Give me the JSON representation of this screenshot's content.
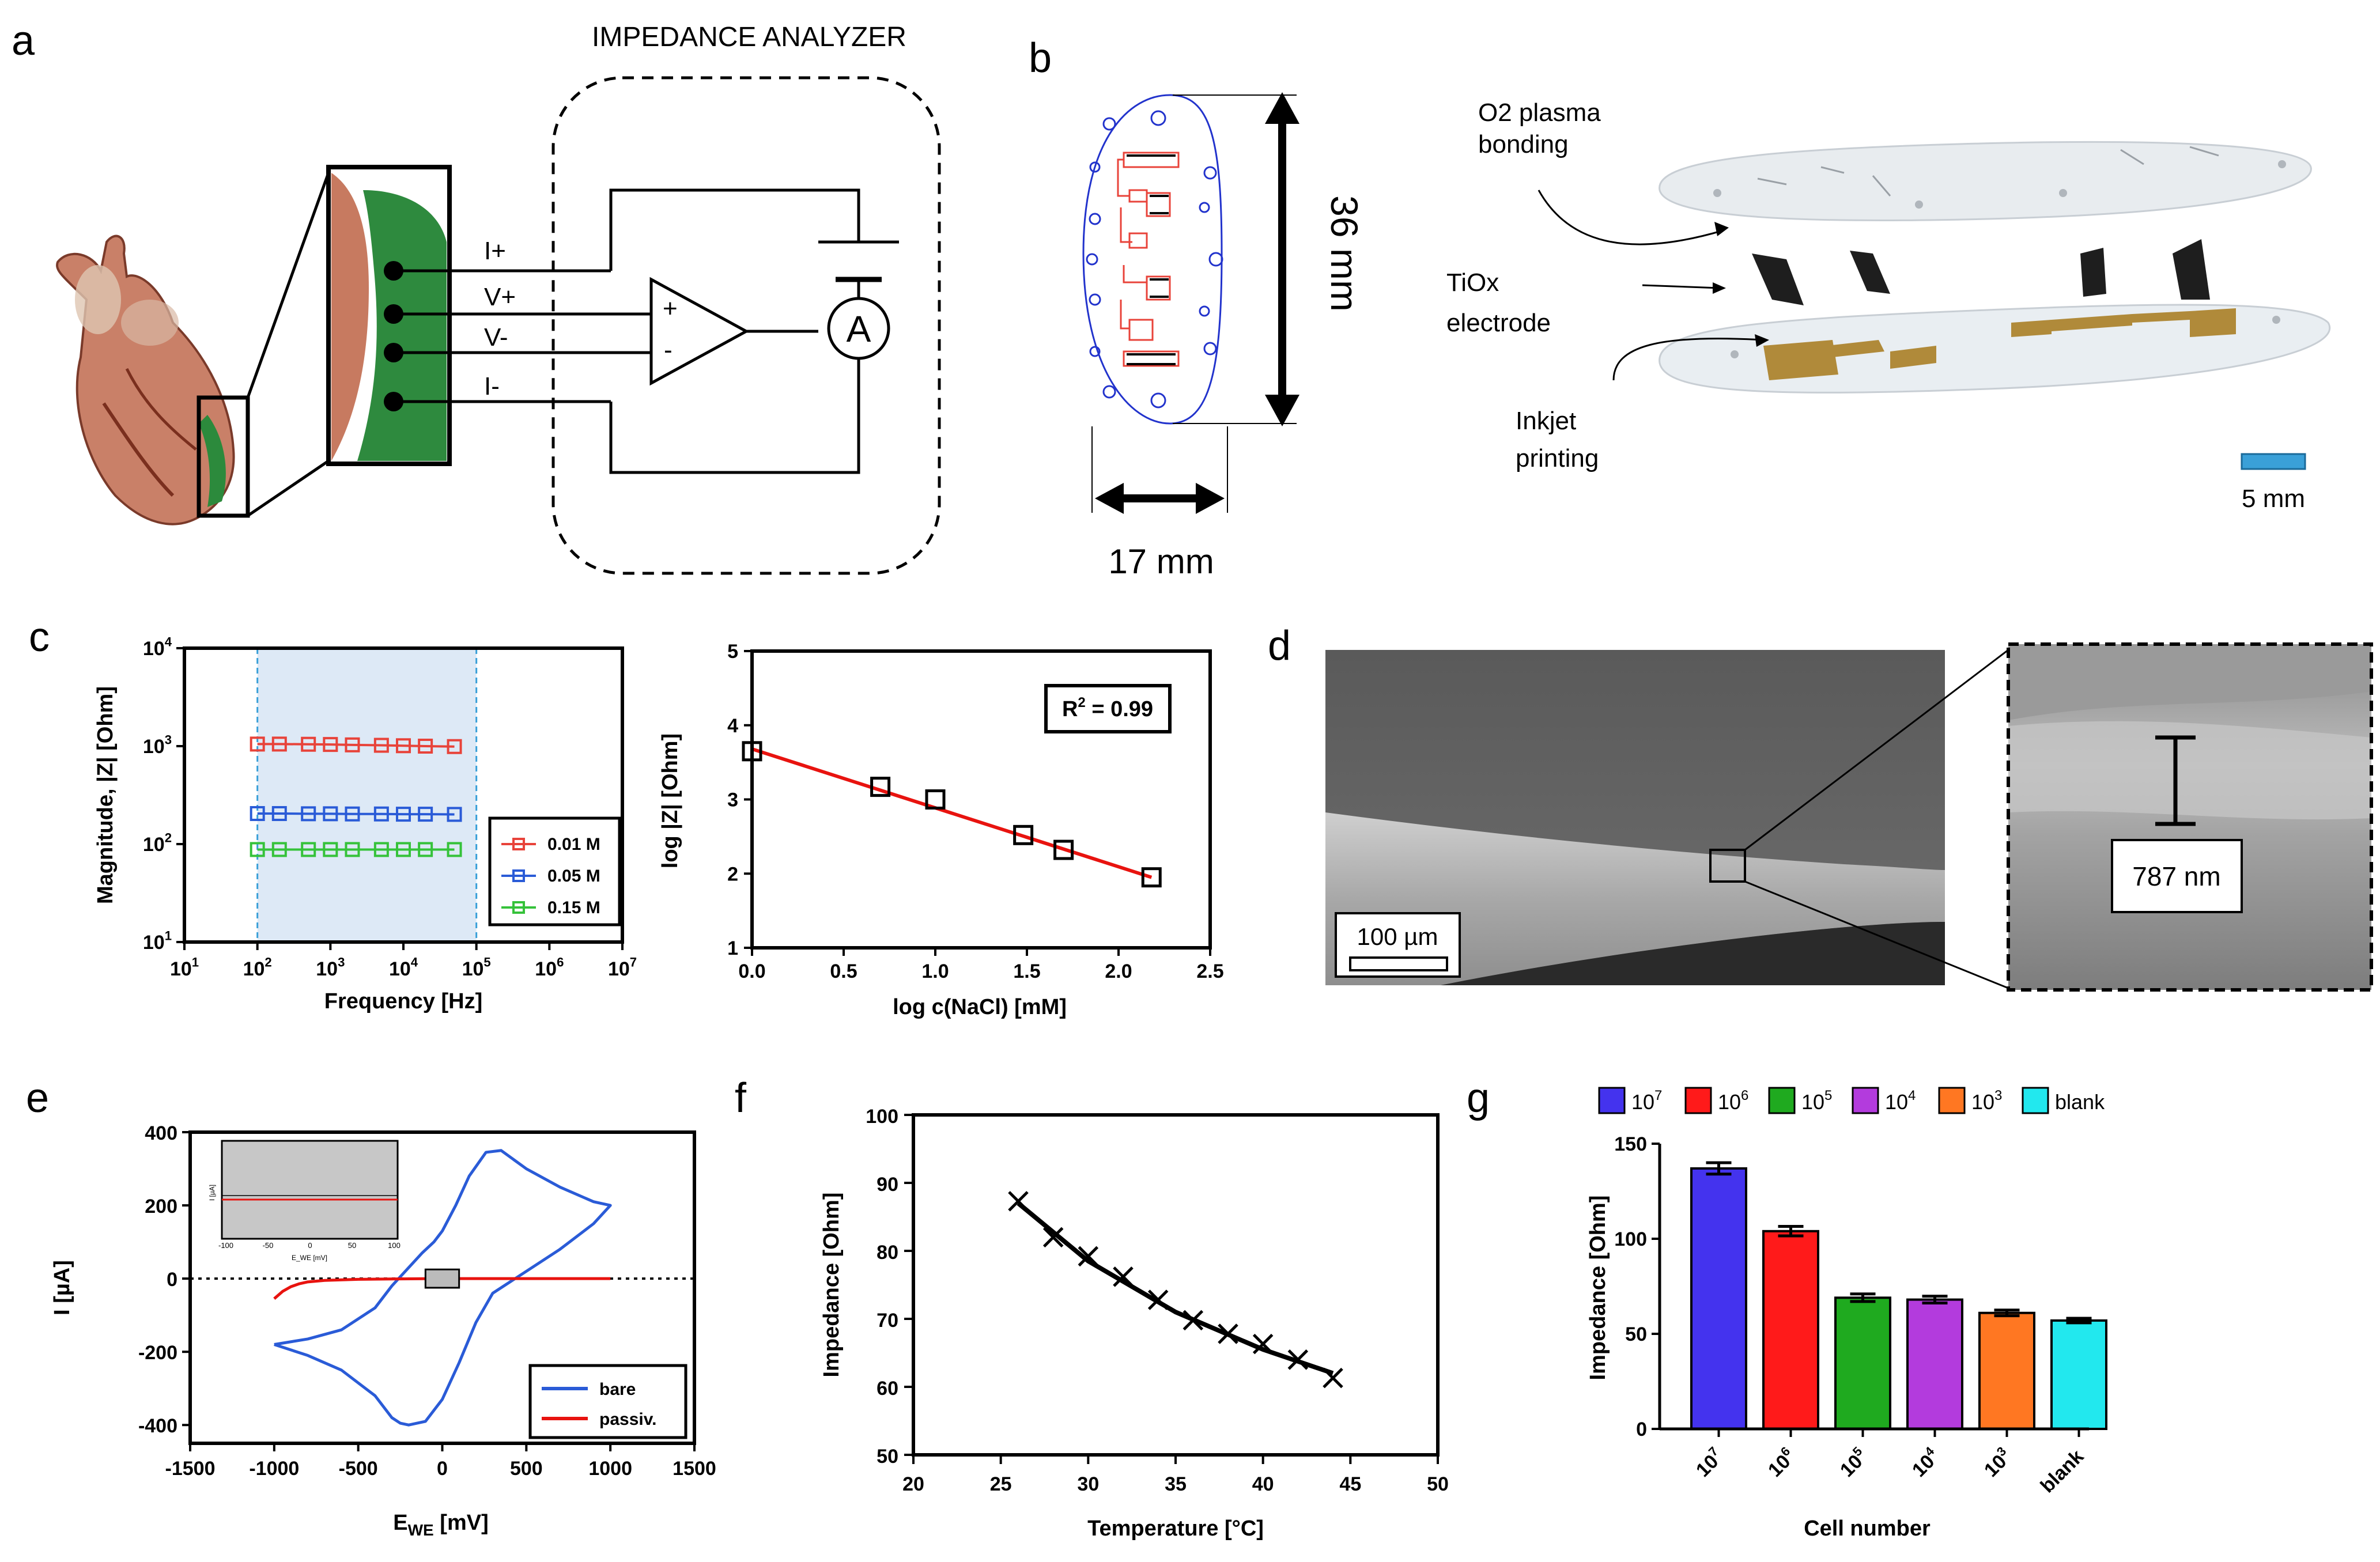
{
  "panel_labels": {
    "a": "a",
    "b": "b",
    "c": "c",
    "d": "d",
    "e": "e",
    "f": "f",
    "g": "g"
  },
  "panel_a": {
    "analyzer_title": "IMPEDANCE ANALYZER",
    "leads": [
      "I+",
      "V+",
      "V-",
      "I-"
    ],
    "opamp_plus": "+",
    "opamp_minus": "-",
    "ammeter": "A"
  },
  "panel_b": {
    "height_label": "36 mm",
    "width_label": "17 mm",
    "o2_label_line1": "O2 plasma",
    "o2_label_line2": "bonding",
    "tiox_label_line1": "TiOx",
    "tiox_label_line2": "electrode",
    "inkjet_label_line1": "Inkjet",
    "inkjet_label_line2": "printing",
    "scale_bar_label": "5 mm",
    "colors": {
      "trace": "#e8433a",
      "outline": "#2233cc",
      "gold": "#b08a3a",
      "scale": "#3aa0d8"
    }
  },
  "panel_d": {
    "scale_bar_label": "100 µm",
    "thickness_label": "787 nm"
  },
  "chart_data": [
    {
      "id": "c-left",
      "type": "line",
      "xscale": "log",
      "yscale": "log",
      "xlabel": "Frequency [Hz]",
      "ylabel": "Magnitude, |Z| [Ohm]",
      "x_ticks": [
        "10",
        "10",
        "10",
        "10",
        "10",
        "10",
        "10"
      ],
      "x_tick_exps": [
        "1",
        "2",
        "3",
        "4",
        "5",
        "6",
        "7"
      ],
      "y_ticks": [
        "10",
        "10",
        "10",
        "10"
      ],
      "y_tick_exps": [
        "1",
        "2",
        "3",
        "4"
      ],
      "xlim": [
        10,
        10000000
      ],
      "ylim": [
        10,
        10000
      ],
      "shaded_range": [
        100,
        100000
      ],
      "x": [
        100,
        200,
        500,
        1000,
        2000,
        5000,
        10000,
        20000,
        50000
      ],
      "series": [
        {
          "name": "0.01 M",
          "color": "#e8433a",
          "values": [
            1050,
            1050,
            1045,
            1040,
            1030,
            1020,
            1010,
            1000,
            990
          ]
        },
        {
          "name": "0.05 M",
          "color": "#2a5bd7",
          "values": [
            205,
            205,
            204,
            204,
            203,
            203,
            202,
            202,
            201
          ]
        },
        {
          "name": "0.15 M",
          "color": "#35c23a",
          "values": [
            88,
            88,
            88,
            88,
            88,
            88,
            88,
            88,
            88
          ]
        }
      ],
      "legend": [
        "0.01 M",
        "0.05 M",
        "0.15 M"
      ],
      "legend_position": "bottom-right"
    },
    {
      "id": "c-right",
      "type": "scatter",
      "xlabel": "log c(NaCl) [mM]",
      "ylabel": "log |Z| [Ohm]",
      "xlim": [
        0,
        2.5
      ],
      "ylim": [
        1,
        5
      ],
      "x_ticks": [
        "0.0",
        "0.5",
        "1.0",
        "1.5",
        "2.0",
        "2.5"
      ],
      "y_ticks": [
        "1",
        "2",
        "3",
        "4",
        "5"
      ],
      "x": [
        0.0,
        0.7,
        1.0,
        1.48,
        1.7,
        2.18
      ],
      "values": [
        3.65,
        3.17,
        3.0,
        2.52,
        2.32,
        1.95
      ],
      "fit": {
        "x0": 0.0,
        "y0": 3.68,
        "x1": 2.18,
        "y1": 1.95,
        "color": "#e8130f"
      },
      "r2_prefix": "R",
      "r2_sup": "2",
      "r2_suffix": " = 0.99"
    },
    {
      "id": "e",
      "type": "line",
      "xlabel_main": "E",
      "xlabel_sub": "WE",
      "xlabel_unit": " [mV]",
      "ylabel": "I [µA]",
      "xlim": [
        -1500,
        1500
      ],
      "ylim": [
        -450,
        400
      ],
      "x_ticks": [
        "-1500",
        "-1000",
        "-500",
        "0",
        "500",
        "1000",
        "1500"
      ],
      "y_ticks": [
        "-400",
        "-200",
        "0",
        "200",
        "400"
      ],
      "series": [
        {
          "name": "bare",
          "color": "#2a5bd7",
          "x": [
            -1000,
            -800,
            -600,
            -400,
            -300,
            -200,
            -120,
            -50,
            0,
            80,
            160,
            260,
            350,
            500,
            700,
            900,
            1000,
            900,
            700,
            500,
            300,
            200,
            100,
            0,
            -100,
            -200,
            -250,
            -300,
            -400,
            -600,
            -800,
            -1000
          ],
          "y": [
            -180,
            -165,
            -140,
            -80,
            -20,
            30,
            70,
            100,
            130,
            200,
            280,
            345,
            350,
            300,
            250,
            210,
            200,
            150,
            80,
            20,
            -40,
            -120,
            -230,
            -330,
            -390,
            -400,
            -395,
            -380,
            -320,
            -250,
            -210,
            -180
          ]
        },
        {
          "name": "passiv.",
          "color": "#e8130f",
          "x": [
            -1000,
            -950,
            -900,
            -850,
            -800,
            -700,
            -500,
            -300,
            0,
            500,
            1000
          ],
          "y": [
            -55,
            -35,
            -22,
            -14,
            -9,
            -5,
            -2,
            -1,
            0,
            0,
            0
          ]
        }
      ],
      "legend": [
        "bare",
        "passiv."
      ],
      "legend_position": "bottom-right",
      "inset": {
        "xlim": [
          -100,
          100
        ],
        "x_ticks": [
          "-100",
          "-50",
          "0",
          "50",
          "100"
        ],
        "xlabel": "E_WE [mV]",
        "ylabel": "I [µA]"
      }
    },
    {
      "id": "f",
      "type": "line",
      "xlabel": "Temperature [°C]",
      "ylabel": "Impedance [Ohm]",
      "xlim": [
        20,
        50
      ],
      "ylim": [
        50,
        100
      ],
      "x_ticks": [
        "20",
        "25",
        "30",
        "35",
        "40",
        "45",
        "50"
      ],
      "y_ticks": [
        "50",
        "60",
        "70",
        "80",
        "90",
        "100"
      ],
      "x": [
        26,
        28,
        30,
        32,
        34,
        36,
        38,
        40,
        42,
        44
      ],
      "values": [
        87.3,
        82.0,
        79.2,
        76.2,
        72.8,
        69.8,
        67.8,
        66.3,
        64.0,
        61.3
      ],
      "fit": {
        "x": [
          26,
          30,
          35,
          40,
          44
        ],
        "y": [
          87,
          78.5,
          71,
          65.5,
          62
        ],
        "color": "#000000"
      }
    },
    {
      "id": "g",
      "type": "bar",
      "xlabel": "Cell number",
      "ylabel": "Impedance [Ohm]",
      "ylim": [
        0,
        150
      ],
      "y_ticks": [
        "0",
        "50",
        "100",
        "150"
      ],
      "categories": [
        "10",
        "10",
        "10",
        "10",
        "10",
        "blank"
      ],
      "category_exps": [
        "7",
        "6",
        "5",
        "4",
        "3",
        ""
      ],
      "values": [
        137,
        104,
        69,
        68,
        61,
        57
      ],
      "errors": [
        3,
        2.5,
        2,
        1.8,
        1.5,
        1.2
      ],
      "colors": [
        "#4433ee",
        "#ff1a1a",
        "#1faa1f",
        "#b33bdd",
        "#ff7722",
        "#22e8ee"
      ],
      "legend_labels": [
        "10",
        "10",
        "10",
        "10",
        "10",
        "blank"
      ],
      "legend_exps": [
        "7",
        "6",
        "5",
        "4",
        "3",
        ""
      ],
      "legend_position": "top"
    }
  ]
}
